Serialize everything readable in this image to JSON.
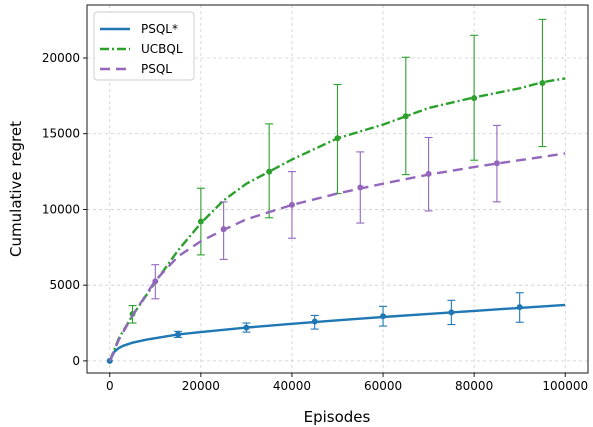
{
  "chart_data": {
    "type": "line",
    "xlabel": "Episodes",
    "ylabel": "Cumulative regret",
    "xlim": [
      -5000,
      105000
    ],
    "ylim": [
      -800,
      23500
    ],
    "xticks": [
      0,
      20000,
      40000,
      60000,
      80000,
      100000
    ],
    "xtick_labels": [
      "0",
      "20000",
      "40000",
      "60000",
      "80000",
      "100000"
    ],
    "yticks": [
      0,
      5000,
      10000,
      15000,
      20000
    ],
    "ytick_labels": [
      "0",
      "5000",
      "10000",
      "15000",
      "20000"
    ],
    "grid": true,
    "legend_position": "upper-left",
    "series": [
      {
        "name": "PSQL*",
        "color": "#1f77b4",
        "style": "solid",
        "curve": [
          [
            0,
            0
          ],
          [
            1000,
            600
          ],
          [
            2000,
            850
          ],
          [
            3000,
            1000
          ],
          [
            5000,
            1200
          ],
          [
            8000,
            1400
          ],
          [
            10000,
            1500
          ],
          [
            15000,
            1750
          ],
          [
            20000,
            1900
          ],
          [
            30000,
            2200
          ],
          [
            40000,
            2450
          ],
          [
            50000,
            2680
          ],
          [
            60000,
            2900
          ],
          [
            70000,
            3100
          ],
          [
            80000,
            3300
          ],
          [
            90000,
            3500
          ],
          [
            100000,
            3700
          ]
        ],
        "markers": [
          {
            "x": 0,
            "y": 0,
            "low": 0,
            "high": 0
          },
          {
            "x": 15000,
            "y": 1750,
            "low": 1550,
            "high": 1950
          },
          {
            "x": 30000,
            "y": 2200,
            "low": 1900,
            "high": 2500
          },
          {
            "x": 45000,
            "y": 2600,
            "low": 2100,
            "high": 3000
          },
          {
            "x": 60000,
            "y": 2950,
            "low": 2300,
            "high": 3600
          },
          {
            "x": 75000,
            "y": 3200,
            "low": 2400,
            "high": 4000
          },
          {
            "x": 90000,
            "y": 3550,
            "low": 2550,
            "high": 4500
          }
        ]
      },
      {
        "name": "UCBQL",
        "color": "#2ca02c",
        "style": "dashdot",
        "curve": [
          [
            0,
            0
          ],
          [
            2000,
            1500
          ],
          [
            5000,
            3000
          ],
          [
            10000,
            5200
          ],
          [
            15000,
            7300
          ],
          [
            20000,
            9100
          ],
          [
            25000,
            10600
          ],
          [
            30000,
            11700
          ],
          [
            35000,
            12500
          ],
          [
            40000,
            13300
          ],
          [
            50000,
            14700
          ],
          [
            60000,
            15600
          ],
          [
            65000,
            16150
          ],
          [
            70000,
            16700
          ],
          [
            80000,
            17400
          ],
          [
            90000,
            18000
          ],
          [
            95000,
            18400
          ],
          [
            100000,
            18650
          ]
        ],
        "markers": [
          {
            "x": 5000,
            "y": 3100,
            "low": 2500,
            "high": 3650
          },
          {
            "x": 20000,
            "y": 9200,
            "low": 7000,
            "high": 11400
          },
          {
            "x": 35000,
            "y": 12500,
            "low": 9450,
            "high": 15650
          },
          {
            "x": 50000,
            "y": 14700,
            "low": 11050,
            "high": 18250
          },
          {
            "x": 65000,
            "y": 16150,
            "low": 12300,
            "high": 20050
          },
          {
            "x": 80000,
            "y": 17350,
            "low": 13250,
            "high": 21500
          },
          {
            "x": 95000,
            "y": 18350,
            "low": 14150,
            "high": 22550
          }
        ]
      },
      {
        "name": "PSQL",
        "color": "#9467bd",
        "style": "dashed",
        "curve": [
          [
            0,
            0
          ],
          [
            2000,
            1400
          ],
          [
            5000,
            3000
          ],
          [
            10000,
            5300
          ],
          [
            15000,
            6900
          ],
          [
            20000,
            7900
          ],
          [
            25000,
            8650
          ],
          [
            30000,
            9350
          ],
          [
            40000,
            10300
          ],
          [
            50000,
            11050
          ],
          [
            60000,
            11700
          ],
          [
            70000,
            12300
          ],
          [
            80000,
            12800
          ],
          [
            90000,
            13250
          ],
          [
            100000,
            13700
          ]
        ],
        "markers": [
          {
            "x": 10000,
            "y": 5250,
            "low": 4100,
            "high": 6350
          },
          {
            "x": 25000,
            "y": 8700,
            "low": 6700,
            "high": 10500
          },
          {
            "x": 40000,
            "y": 10300,
            "low": 8100,
            "high": 12500
          },
          {
            "x": 55000,
            "y": 11450,
            "low": 9100,
            "high": 13800
          },
          {
            "x": 70000,
            "y": 12350,
            "low": 9900,
            "high": 14750
          },
          {
            "x": 85000,
            "y": 13050,
            "low": 10500,
            "high": 15550
          }
        ]
      }
    ]
  }
}
